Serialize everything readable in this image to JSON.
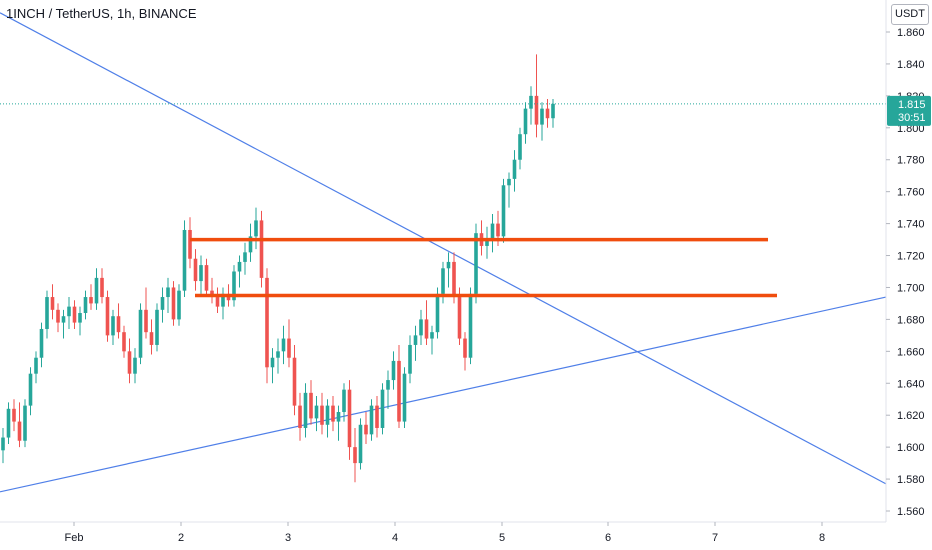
{
  "header": {
    "symbol_title": "1INCH / TetherUS, 1h, BINANCE",
    "currency": "USDT"
  },
  "price_badge": {
    "price": "1.815",
    "countdown": "30:51",
    "color": "#26a69a"
  },
  "colors": {
    "up": "#26a69a",
    "down": "#ef5350",
    "trendline": "#4f7fe8",
    "support_resistance": "#f04d0e",
    "last_price_line": "#26a69a"
  },
  "chart_data": {
    "type": "candlestick",
    "y_axis": {
      "min": 1.55,
      "max": 1.87,
      "ticks": [
        "1.860",
        "1.840",
        "1.820",
        "1.800",
        "1.780",
        "1.760",
        "1.740",
        "1.720",
        "1.700",
        "1.680",
        "1.660",
        "1.640",
        "1.620",
        "1.600",
        "1.580",
        "1.560"
      ]
    },
    "x_axis": {
      "ticks": [
        "Feb",
        "2",
        "3",
        "4",
        "5",
        "6",
        "7",
        "8"
      ]
    },
    "last_price": 1.815,
    "candles_ohlc": [
      [
        1.598,
        1.612,
        1.59,
        1.606
      ],
      [
        1.606,
        1.628,
        1.602,
        1.624
      ],
      [
        1.624,
        1.63,
        1.61,
        1.616
      ],
      [
        1.616,
        1.628,
        1.6,
        1.604
      ],
      [
        1.604,
        1.63,
        1.6,
        1.626
      ],
      [
        1.626,
        1.65,
        1.62,
        1.646
      ],
      [
        1.646,
        1.66,
        1.64,
        1.656
      ],
      [
        1.656,
        1.678,
        1.65,
        1.674
      ],
      [
        1.674,
        1.698,
        1.668,
        1.694
      ],
      [
        1.694,
        1.702,
        1.68,
        1.686
      ],
      [
        1.686,
        1.69,
        1.672,
        1.678
      ],
      [
        1.678,
        1.686,
        1.668,
        1.682
      ],
      [
        1.682,
        1.694,
        1.674,
        1.688
      ],
      [
        1.688,
        1.692,
        1.674,
        1.678
      ],
      [
        1.678,
        1.688,
        1.67,
        1.684
      ],
      [
        1.684,
        1.698,
        1.68,
        1.694
      ],
      [
        1.694,
        1.702,
        1.686,
        1.69
      ],
      [
        1.69,
        1.712,
        1.686,
        1.706
      ],
      [
        1.706,
        1.712,
        1.69,
        1.694
      ],
      [
        1.694,
        1.698,
        1.666,
        1.67
      ],
      [
        1.67,
        1.686,
        1.664,
        1.682
      ],
      [
        1.682,
        1.69,
        1.668,
        1.672
      ],
      [
        1.672,
        1.676,
        1.656,
        1.66
      ],
      [
        1.66,
        1.668,
        1.64,
        1.646
      ],
      [
        1.646,
        1.662,
        1.64,
        1.656
      ],
      [
        1.656,
        1.69,
        1.652,
        1.686
      ],
      [
        1.686,
        1.7,
        1.668,
        1.672
      ],
      [
        1.672,
        1.68,
        1.658,
        1.664
      ],
      [
        1.664,
        1.69,
        1.66,
        1.686
      ],
      [
        1.686,
        1.7,
        1.678,
        1.694
      ],
      [
        1.694,
        1.706,
        1.684,
        1.7
      ],
      [
        1.7,
        1.704,
        1.676,
        1.68
      ],
      [
        1.68,
        1.702,
        1.676,
        1.698
      ],
      [
        1.698,
        1.742,
        1.694,
        1.736
      ],
      [
        1.736,
        1.744,
        1.712,
        1.718
      ],
      [
        1.718,
        1.724,
        1.698,
        1.704
      ],
      [
        1.704,
        1.72,
        1.696,
        1.714
      ],
      [
        1.714,
        1.718,
        1.694,
        1.698
      ],
      [
        1.698,
        1.706,
        1.69,
        1.694
      ],
      [
        1.694,
        1.7,
        1.684,
        1.688
      ],
      [
        1.688,
        1.7,
        1.68,
        1.696
      ],
      [
        1.696,
        1.702,
        1.688,
        1.692
      ],
      [
        1.692,
        1.714,
        1.688,
        1.71
      ],
      [
        1.71,
        1.72,
        1.7,
        1.716
      ],
      [
        1.716,
        1.728,
        1.708,
        1.722
      ],
      [
        1.722,
        1.74,
        1.716,
        1.732
      ],
      [
        1.732,
        1.75,
        1.724,
        1.742
      ],
      [
        1.742,
        1.748,
        1.7,
        1.706
      ],
      [
        1.706,
        1.712,
        1.64,
        1.65
      ],
      [
        1.65,
        1.662,
        1.64,
        1.656
      ],
      [
        1.656,
        1.668,
        1.646,
        1.66
      ],
      [
        1.66,
        1.676,
        1.652,
        1.668
      ],
      [
        1.668,
        1.68,
        1.65,
        1.656
      ],
      [
        1.656,
        1.664,
        1.62,
        1.626
      ],
      [
        1.626,
        1.634,
        1.604,
        1.612
      ],
      [
        1.612,
        1.64,
        1.606,
        1.634
      ],
      [
        1.634,
        1.642,
        1.614,
        1.618
      ],
      [
        1.618,
        1.632,
        1.61,
        1.626
      ],
      [
        1.626,
        1.634,
        1.608,
        1.614
      ],
      [
        1.614,
        1.63,
        1.606,
        1.626
      ],
      [
        1.626,
        1.632,
        1.61,
        1.616
      ],
      [
        1.616,
        1.626,
        1.604,
        1.622
      ],
      [
        1.622,
        1.64,
        1.616,
        1.636
      ],
      [
        1.636,
        1.642,
        1.592,
        1.6
      ],
      [
        1.6,
        1.612,
        1.578,
        1.59
      ],
      [
        1.59,
        1.618,
        1.586,
        1.614
      ],
      [
        1.614,
        1.622,
        1.602,
        1.608
      ],
      [
        1.608,
        1.63,
        1.604,
        1.626
      ],
      [
        1.626,
        1.632,
        1.606,
        1.612
      ],
      [
        1.612,
        1.64,
        1.608,
        1.636
      ],
      [
        1.636,
        1.648,
        1.624,
        1.642
      ],
      [
        1.642,
        1.66,
        1.636,
        1.654
      ],
      [
        1.654,
        1.664,
        1.612,
        1.616
      ],
      [
        1.616,
        1.65,
        1.612,
        1.646
      ],
      [
        1.646,
        1.67,
        1.64,
        1.664
      ],
      [
        1.664,
        1.676,
        1.654,
        1.67
      ],
      [
        1.67,
        1.686,
        1.664,
        1.68
      ],
      [
        1.68,
        1.692,
        1.664,
        1.668
      ],
      [
        1.668,
        1.676,
        1.658,
        1.672
      ],
      [
        1.672,
        1.7,
        1.668,
        1.696
      ],
      [
        1.696,
        1.716,
        1.69,
        1.712
      ],
      [
        1.712,
        1.722,
        1.7,
        1.716
      ],
      [
        1.716,
        1.722,
        1.69,
        1.694
      ],
      [
        1.694,
        1.7,
        1.664,
        1.668
      ],
      [
        1.668,
        1.672,
        1.648,
        1.656
      ],
      [
        1.656,
        1.7,
        1.652,
        1.696
      ],
      [
        1.696,
        1.74,
        1.69,
        1.734
      ],
      [
        1.734,
        1.742,
        1.72,
        1.726
      ],
      [
        1.726,
        1.738,
        1.718,
        1.73
      ],
      [
        1.73,
        1.746,
        1.722,
        1.74
      ],
      [
        1.74,
        1.748,
        1.726,
        1.732
      ],
      [
        1.732,
        1.768,
        1.728,
        1.764
      ],
      [
        1.764,
        1.772,
        1.75,
        1.768
      ],
      [
        1.768,
        1.786,
        1.76,
        1.78
      ],
      [
        1.78,
        1.8,
        1.774,
        1.796
      ],
      [
        1.796,
        1.816,
        1.79,
        1.812
      ],
      [
        1.812,
        1.826,
        1.802,
        1.82
      ],
      [
        1.82,
        1.846,
        1.794,
        1.802
      ],
      [
        1.802,
        1.816,
        1.792,
        1.812
      ],
      [
        1.812,
        1.818,
        1.8,
        1.806
      ],
      [
        1.806,
        1.818,
        1.8,
        1.815
      ]
    ],
    "overlays": {
      "descending_trendline": {
        "from": [
          "Feb",
          1.872
        ],
        "to": [
          "8",
          1.577
        ]
      },
      "ascending_trendline": {
        "from": [
          "Feb",
          1.572
        ],
        "to": [
          "8",
          1.694
        ]
      },
      "resistance_upper": 1.73,
      "resistance_lower": 1.695
    }
  }
}
